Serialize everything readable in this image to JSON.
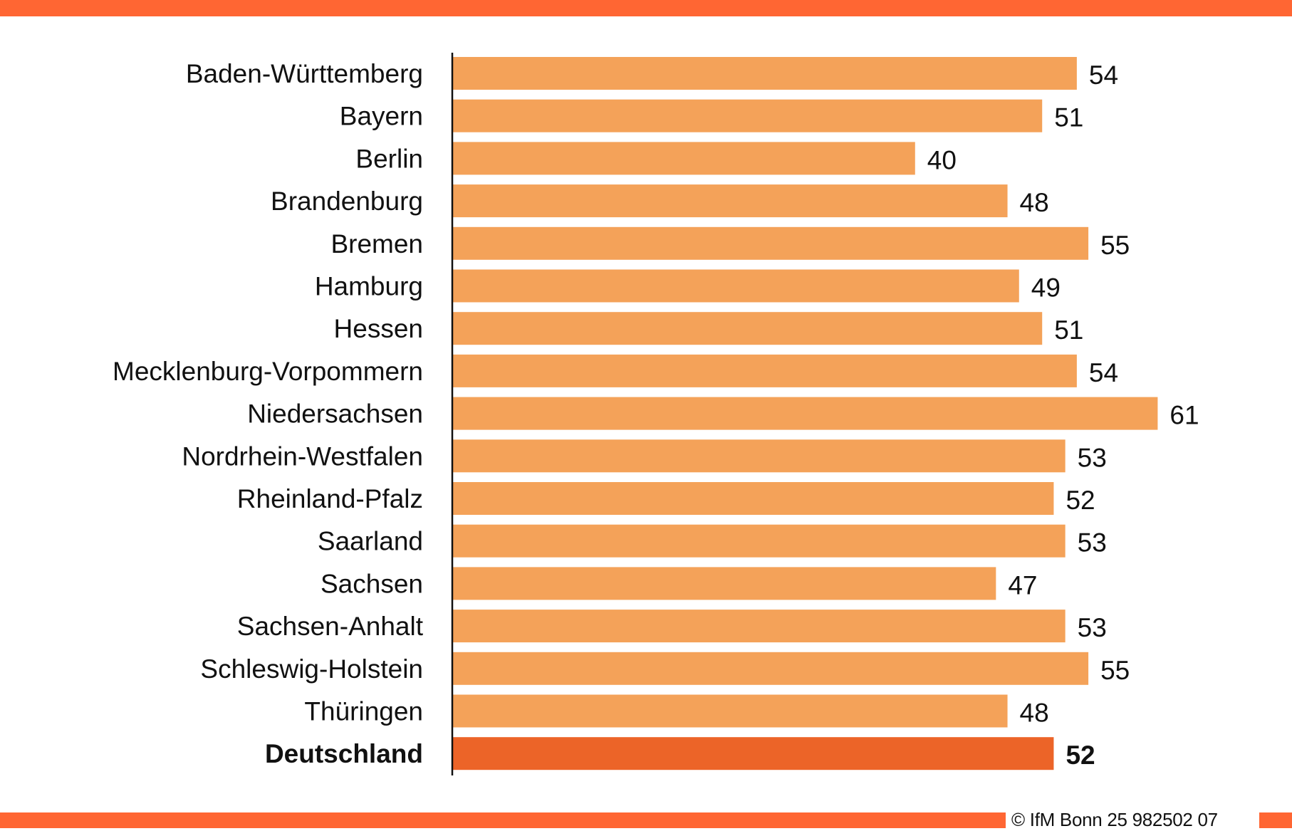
{
  "chart_data": {
    "type": "bar",
    "orientation": "horizontal",
    "title": "",
    "xlabel": "",
    "ylabel": "",
    "xlim": [
      0,
      70
    ],
    "grid": false,
    "categories": [
      "Baden-Württemberg",
      "Bayern",
      "Berlin",
      "Brandenburg",
      "Bremen",
      "Hamburg",
      "Hessen",
      "Mecklenburg-Vorpommern",
      "Niedersachsen",
      "Nordrhein-Westfalen",
      "Rheinland-Pfalz",
      "Saarland",
      "Sachsen",
      "Sachsen-Anhalt",
      "Schleswig-Holstein",
      "Thüringen",
      "Deutschland"
    ],
    "values": [
      54,
      51,
      40,
      48,
      55,
      49,
      51,
      54,
      61,
      53,
      52,
      53,
      47,
      53,
      55,
      48,
      52
    ],
    "highlight": "Deutschland",
    "colors": {
      "bar": "#f4a259",
      "highlight_bar": "#ec6428",
      "band": "#ff6633",
      "axis": "#111111"
    }
  },
  "footer": {
    "credit": "© IfM Bonn 25 982502 07"
  }
}
